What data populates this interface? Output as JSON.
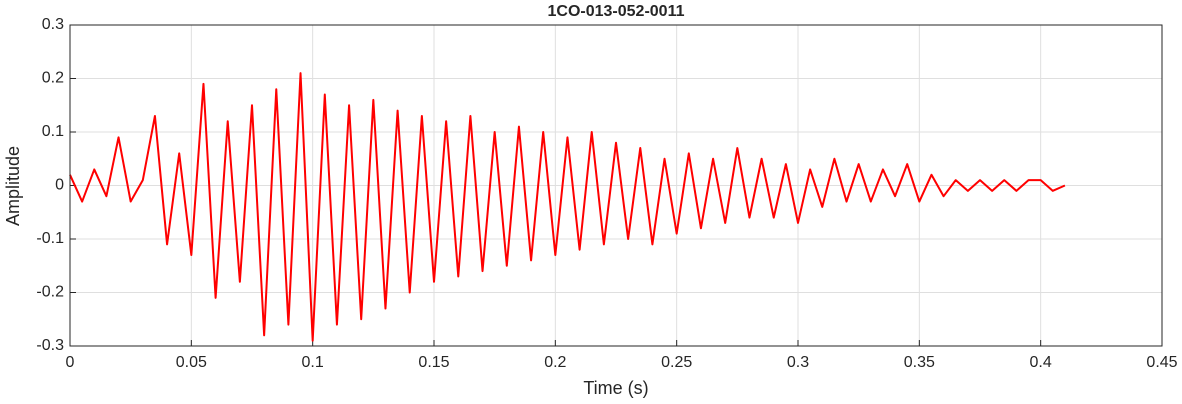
{
  "chart_data": {
    "type": "line",
    "title": "1CO-013-052-0011",
    "xlabel": "Time (s)",
    "ylabel": "Amplitude",
    "color": "#ff0000",
    "grid": true,
    "xlim": [
      0,
      0.45
    ],
    "ylim": [
      -0.3,
      0.3
    ],
    "xticks": [
      0,
      0.05,
      0.1,
      0.15,
      0.2,
      0.25,
      0.3,
      0.35,
      0.4,
      0.45
    ],
    "yticks": [
      -0.3,
      -0.2,
      -0.1,
      0,
      0.1,
      0.2,
      0.3
    ],
    "x": [
      0,
      0.005,
      0.01,
      0.015,
      0.02,
      0.025,
      0.03,
      0.035,
      0.04,
      0.045,
      0.05,
      0.055,
      0.06,
      0.065,
      0.07,
      0.075,
      0.08,
      0.085,
      0.09,
      0.095,
      0.1,
      0.105,
      0.11,
      0.115,
      0.12,
      0.125,
      0.13,
      0.135,
      0.14,
      0.145,
      0.15,
      0.155,
      0.16,
      0.165,
      0.17,
      0.175,
      0.18,
      0.185,
      0.19,
      0.195,
      0.2,
      0.205,
      0.21,
      0.215,
      0.22,
      0.225,
      0.23,
      0.235,
      0.24,
      0.245,
      0.25,
      0.255,
      0.26,
      0.265,
      0.27,
      0.275,
      0.28,
      0.285,
      0.29,
      0.295,
      0.3,
      0.305,
      0.31,
      0.315,
      0.32,
      0.325,
      0.33,
      0.335,
      0.34,
      0.345,
      0.35,
      0.355,
      0.36,
      0.365,
      0.37,
      0.375,
      0.38,
      0.385,
      0.39,
      0.395,
      0.4,
      0.405,
      0.41
    ],
    "values": [
      0.02,
      -0.03,
      0.03,
      -0.02,
      0.09,
      -0.03,
      0.01,
      0.13,
      -0.11,
      0.06,
      -0.13,
      0.19,
      -0.21,
      0.12,
      -0.18,
      0.15,
      -0.28,
      0.18,
      -0.26,
      0.21,
      -0.29,
      0.17,
      -0.26,
      0.15,
      -0.25,
      0.16,
      -0.23,
      0.14,
      -0.2,
      0.13,
      -0.18,
      0.12,
      -0.17,
      0.13,
      -0.16,
      0.1,
      -0.15,
      0.11,
      -0.14,
      0.1,
      -0.13,
      0.09,
      -0.12,
      0.1,
      -0.11,
      0.08,
      -0.1,
      0.07,
      -0.11,
      0.05,
      -0.09,
      0.06,
      -0.08,
      0.05,
      -0.07,
      0.07,
      -0.06,
      0.05,
      -0.06,
      0.04,
      -0.07,
      0.03,
      -0.04,
      0.05,
      -0.03,
      0.04,
      -0.03,
      0.03,
      -0.02,
      0.04,
      -0.03,
      0.02,
      -0.02,
      0.01,
      -0.01,
      0.01,
      -0.01,
      0.01,
      -0.01,
      0.01,
      0.01,
      -0.01,
      0
    ]
  }
}
